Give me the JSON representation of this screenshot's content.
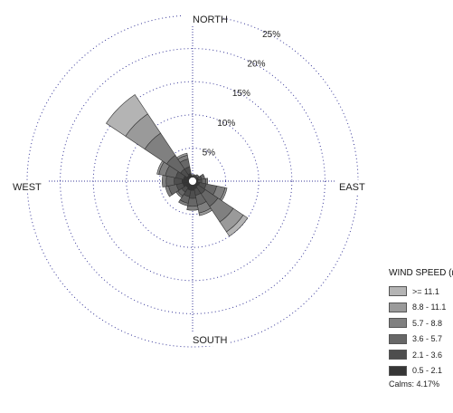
{
  "chart_data": {
    "type": "windrose",
    "directions": [
      "N",
      "NNE",
      "NE",
      "ENE",
      "E",
      "ESE",
      "SE",
      "SSE",
      "S",
      "SSW",
      "SW",
      "WSW",
      "W",
      "WNW",
      "NW",
      "NNW"
    ],
    "cardinal_labels": {
      "north": "NORTH",
      "east": "EAST",
      "south": "SOUTH",
      "west": "WEST"
    },
    "radial_labels": [
      "5%",
      "10%",
      "15%",
      "20%",
      "25%"
    ],
    "radial_ticks": [
      5,
      10,
      15,
      20,
      25
    ],
    "rmax": 25,
    "legend_title": "WIND SPEED (m/s)",
    "bins": [
      {
        "label": ">= 11.1",
        "color": "#b4b4b4"
      },
      {
        "label": "8.8 - 11.1",
        "color": "#9a9a9a"
      },
      {
        "label": "5.7 - 8.8",
        "color": "#808080"
      },
      {
        "label": "3.6 - 5.7",
        "color": "#676767"
      },
      {
        "label": "2.1 - 3.6",
        "color": "#4e4e4e"
      },
      {
        "label": "0.5 - 2.1",
        "color": "#363636"
      }
    ],
    "calms": "Calms: 4.17%",
    "frequencies": [
      {
        "dir": "N",
        "values": [
          0,
          0,
          0,
          0.2,
          0.3,
          0.5
        ]
      },
      {
        "dir": "NNE",
        "values": [
          0,
          0,
          0,
          0.2,
          0.3,
          0.5
        ]
      },
      {
        "dir": "NE",
        "values": [
          0,
          0,
          0,
          0.3,
          0.3,
          0.6
        ]
      },
      {
        "dir": "ENE",
        "values": [
          0,
          0,
          0,
          0.5,
          0.5,
          0.9
        ]
      },
      {
        "dir": "E",
        "values": [
          0,
          0,
          0.3,
          0.6,
          0.6,
          0.8
        ]
      },
      {
        "dir": "ESE",
        "values": [
          0,
          0.3,
          1.3,
          1.6,
          1.0,
          1.1
        ]
      },
      {
        "dir": "SE",
        "values": [
          0.8,
          1.8,
          2.8,
          2.3,
          1.3,
          1.0
        ]
      },
      {
        "dir": "SSE",
        "values": [
          0,
          0.4,
          1.2,
          1.5,
          1.0,
          1.2
        ]
      },
      {
        "dir": "S",
        "values": [
          0,
          0,
          0.6,
          1.2,
          1.2,
          1.4
        ]
      },
      {
        "dir": "SSW",
        "values": [
          0,
          0,
          0.4,
          1.0,
          1.0,
          1.4
        ]
      },
      {
        "dir": "SW",
        "values": [
          0,
          0,
          0.3,
          0.7,
          0.8,
          1.2
        ]
      },
      {
        "dir": "WSW",
        "values": [
          0,
          0,
          0.5,
          1.2,
          1.0,
          1.5
        ]
      },
      {
        "dir": "W",
        "values": [
          0,
          0,
          0.6,
          1.2,
          1.2,
          1.6
        ]
      },
      {
        "dir": "WNW",
        "values": [
          0,
          0.3,
          1.0,
          1.6,
          1.2,
          1.4
        ]
      },
      {
        "dir": "NW",
        "values": [
          3.5,
          3.5,
          4.0,
          2.5,
          1.2,
          1.0
        ]
      },
      {
        "dir": "NNW",
        "values": [
          0,
          0.3,
          0.6,
          1.2,
          1.0,
          1.2
        ]
      }
    ],
    "legend_position": "bottom-right",
    "grid": true
  }
}
